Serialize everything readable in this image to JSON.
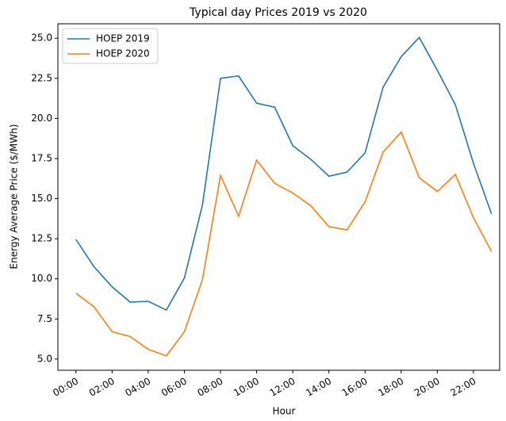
{
  "chart_data": {
    "type": "line",
    "title": "Typical day Prices 2019 vs 2020",
    "xlabel": "Hour",
    "ylabel": "Energy Average Price ($/MWh)",
    "x": [
      0,
      1,
      2,
      3,
      4,
      5,
      6,
      7,
      8,
      9,
      10,
      11,
      12,
      13,
      14,
      15,
      16,
      17,
      18,
      19,
      20,
      21,
      22,
      23
    ],
    "series": [
      {
        "name": "HOEP 2019",
        "color": "#1f77b4",
        "values": [
          12.45,
          10.75,
          9.5,
          8.55,
          8.6,
          8.05,
          10.05,
          14.6,
          22.5,
          22.65,
          20.95,
          20.7,
          18.3,
          17.45,
          16.4,
          16.65,
          17.85,
          21.95,
          23.85,
          25.05,
          23.0,
          20.85,
          17.2,
          14.05
        ]
      },
      {
        "name": "HOEP 2020",
        "color": "#ff7f0e",
        "values": [
          9.1,
          8.25,
          6.7,
          6.4,
          5.6,
          5.2,
          6.7,
          9.95,
          16.45,
          13.9,
          17.4,
          15.95,
          15.35,
          14.55,
          13.25,
          13.05,
          14.8,
          17.9,
          19.15,
          16.3,
          15.45,
          16.5,
          13.8,
          11.7
        ]
      }
    ],
    "xlim": [
      -1.0,
      23.45
    ],
    "xticks": [
      {
        "value": 0,
        "label": "00:00"
      },
      {
        "value": 2,
        "label": "02:00"
      },
      {
        "value": 4,
        "label": "04:00"
      },
      {
        "value": 6,
        "label": "06:00"
      },
      {
        "value": 8,
        "label": "08:00"
      },
      {
        "value": 10,
        "label": "10:00"
      },
      {
        "value": 12,
        "label": "12:00"
      },
      {
        "value": 14,
        "label": "14:00"
      },
      {
        "value": 16,
        "label": "16:00"
      },
      {
        "value": 18,
        "label": "18:00"
      },
      {
        "value": 20,
        "label": "20:00"
      },
      {
        "value": 22,
        "label": "22:00"
      }
    ],
    "ylim": [
      4.3,
      25.9
    ],
    "yticks": [
      {
        "value": 5,
        "label": "5.0"
      },
      7.5,
      {
        "value": 10,
        "label": "10.0"
      },
      12.5,
      {
        "value": 15,
        "label": "15.0"
      },
      17.5,
      {
        "value": 20,
        "label": "20.0"
      },
      22.5,
      {
        "value": 25,
        "label": "25.0"
      }
    ],
    "legend": "upper left",
    "grid": false
  }
}
